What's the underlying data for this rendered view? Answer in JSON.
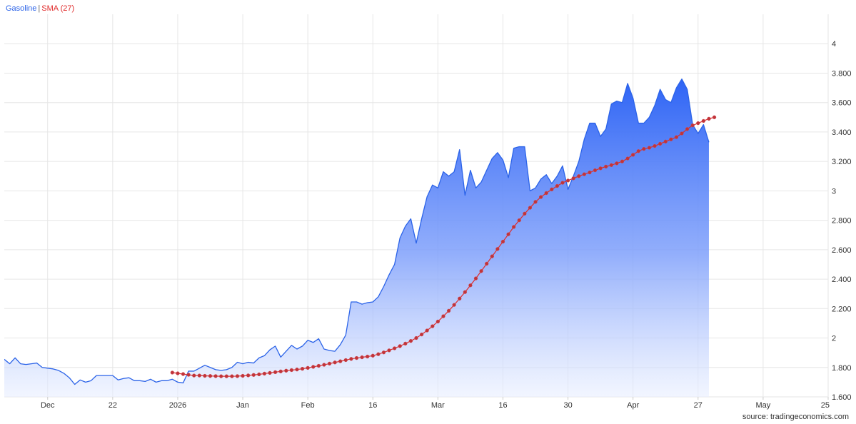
{
  "colors": {
    "gasoline": "#2b63e8",
    "sma": "#e02a2a",
    "grid": "#e6e6e6",
    "axis": "#cccccc"
  },
  "legend": {
    "series1": "Gasoline",
    "separator": "|",
    "series2": "SMA (27)"
  },
  "source": "source: tradingeconomics.com",
  "chart_data": {
    "type": "area",
    "title": "",
    "xlabel": "",
    "ylabel": "",
    "ylim": [
      1.6,
      4.2
    ],
    "grid": true,
    "legend_position": "top-left",
    "y_ticks": [
      {
        "value": 1.6,
        "label": "1.600"
      },
      {
        "value": 1.8,
        "label": "1.800"
      },
      {
        "value": 2.0,
        "label": "2"
      },
      {
        "value": 2.2,
        "label": "2.200"
      },
      {
        "value": 2.4,
        "label": "2.400"
      },
      {
        "value": 2.6,
        "label": "2.600"
      },
      {
        "value": 2.8,
        "label": "2.800"
      },
      {
        "value": 3.0,
        "label": "3"
      },
      {
        "value": 3.2,
        "label": "3.200"
      },
      {
        "value": 3.4,
        "label": "3.400"
      },
      {
        "value": 3.6,
        "label": "3.600"
      },
      {
        "value": 3.8,
        "label": "3.800"
      },
      {
        "value": 4.0,
        "label": "4"
      }
    ],
    "x_ticks": [
      {
        "index": 8,
        "label": "Dec"
      },
      {
        "index": 20,
        "label": "22"
      },
      {
        "index": 32,
        "label": "2026"
      },
      {
        "index": 44,
        "label": "Jan"
      },
      {
        "index": 56,
        "label": "Feb"
      },
      {
        "index": 68,
        "label": "16"
      },
      {
        "index": 80,
        "label": "Mar"
      },
      {
        "index": 92,
        "label": "16"
      },
      {
        "index": 104,
        "label": "30"
      },
      {
        "index": 116,
        "label": "Apr"
      },
      {
        "index": 128,
        "label": "27"
      },
      {
        "index": 140,
        "label": "May"
      },
      {
        "index": 152,
        "label": "25"
      }
    ],
    "series": [
      {
        "name": "Gasoline",
        "start_index": 0,
        "values": [
          1.855,
          1.825,
          1.865,
          1.825,
          1.82,
          1.825,
          1.83,
          1.8,
          1.795,
          1.79,
          1.78,
          1.76,
          1.73,
          1.685,
          1.715,
          1.7,
          1.71,
          1.745,
          1.745,
          1.745,
          1.745,
          1.715,
          1.725,
          1.73,
          1.71,
          1.71,
          1.705,
          1.72,
          1.7,
          1.71,
          1.71,
          1.72,
          1.7,
          1.695,
          1.775,
          1.775,
          1.795,
          1.815,
          1.8,
          1.785,
          1.78,
          1.785,
          1.8,
          1.835,
          1.825,
          1.835,
          1.83,
          1.865,
          1.88,
          1.92,
          1.945,
          1.87,
          1.91,
          1.95,
          1.925,
          1.945,
          1.985,
          1.97,
          1.995,
          1.925,
          1.915,
          1.91,
          1.955,
          2.02,
          2.245,
          2.245,
          2.23,
          2.24,
          2.245,
          2.28,
          2.35,
          2.43,
          2.5,
          2.68,
          2.76,
          2.81,
          2.645,
          2.81,
          2.96,
          3.04,
          3.02,
          3.13,
          3.1,
          3.13,
          3.28,
          2.97,
          3.14,
          3.02,
          3.06,
          3.14,
          3.22,
          3.26,
          3.21,
          3.09,
          3.29,
          3.3,
          3.3,
          3.0,
          3.02,
          3.08,
          3.11,
          3.05,
          3.1,
          3.17,
          3.01,
          3.1,
          3.2,
          3.35,
          3.46,
          3.46,
          3.37,
          3.42,
          3.59,
          3.61,
          3.6,
          3.73,
          3.63,
          3.46,
          3.46,
          3.5,
          3.58,
          3.69,
          3.62,
          3.6,
          3.7,
          3.76,
          3.69,
          3.45,
          3.39,
          3.45,
          3.33
        ]
      },
      {
        "name": "SMA (27)",
        "start_index": 31,
        "values": [
          1.765,
          1.76,
          1.755,
          1.75,
          1.745,
          1.745,
          1.743,
          1.742,
          1.741,
          1.74,
          1.74,
          1.74,
          1.741,
          1.743,
          1.746,
          1.749,
          1.753,
          1.758,
          1.763,
          1.768,
          1.773,
          1.778,
          1.782,
          1.786,
          1.791,
          1.797,
          1.804,
          1.811,
          1.818,
          1.826,
          1.834,
          1.842,
          1.85,
          1.858,
          1.864,
          1.869,
          1.874,
          1.88,
          1.89,
          1.902,
          1.916,
          1.93,
          1.945,
          1.962,
          1.98,
          2.0,
          2.024,
          2.051,
          2.08,
          2.112,
          2.148,
          2.185,
          2.225,
          2.268,
          2.312,
          2.358,
          2.405,
          2.455,
          2.505,
          2.555,
          2.605,
          2.655,
          2.705,
          2.755,
          2.8,
          2.845,
          2.885,
          2.925,
          2.958,
          2.985,
          3.01,
          3.033,
          3.055,
          3.07,
          3.085,
          3.1,
          3.113,
          3.125,
          3.14,
          3.153,
          3.165,
          3.175,
          3.187,
          3.2,
          3.22,
          3.245,
          3.27,
          3.285,
          3.293,
          3.305,
          3.32,
          3.335,
          3.35,
          3.365,
          3.39,
          3.42,
          3.445,
          3.46,
          3.475,
          3.49,
          3.5
        ]
      }
    ]
  }
}
